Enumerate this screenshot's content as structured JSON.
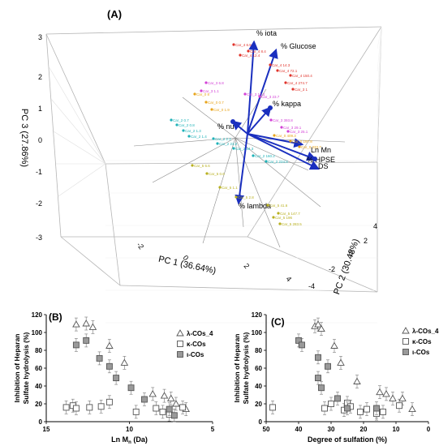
{
  "chart_data": [
    {
      "type": "scatter",
      "panel_label": "(A)",
      "xlabel": "PC 1 (36.64%)",
      "ylabel": "PC 2 (30.48%)",
      "zlabel": "PC 3 (27.86%)",
      "pc1_ticks": [
        "-2",
        "0",
        "2",
        "4"
      ],
      "pc2_ticks": [
        "-4",
        "-2",
        "0",
        "2",
        "4"
      ],
      "pc3_ticks": [
        "-3",
        "-2",
        "-1",
        "0",
        "1",
        "2",
        "3"
      ],
      "vectors": [
        {
          "name": "% iota",
          "color": "#1a2fbf"
        },
        {
          "name": "% Glucose",
          "color": "#1a2fbf"
        },
        {
          "name": "% kappa",
          "color": "#1a2fbf"
        },
        {
          "name": "% nu",
          "color": "#1a2fbf"
        },
        {
          "name": "Ln Mn",
          "color": "#1a2fbf"
        },
        {
          "name": "% HPSE",
          "color": "#1a2fbf"
        },
        {
          "name": "DS",
          "color": "#1a2fbf"
        },
        {
          "name": "% lambda",
          "color": "#1a2fbf"
        }
      ],
      "groups": [
        {
          "name": "red",
          "color": "#e0322a",
          "labels": [
            "Car_4 6.5",
            "Car_4 8.4",
            "Car_4 12.4",
            "Car_4 14.3",
            "Car_4 72.1",
            "Car_4 150.4",
            "Car_4 274.7",
            "Car_3 1"
          ]
        },
        {
          "name": "magenta",
          "color": "#d23fd6",
          "labels": [
            "Car_3 6.8",
            "Car_3 1.1",
            "Car_3 17.4",
            "Car_3 23.7",
            "Car_3 393.8",
            "Car_3 29.1",
            "Car_3 25.1"
          ]
        },
        {
          "name": "orange",
          "color": "#e8a319",
          "labels": [
            "Car_0 8",
            "Car_0 0.7",
            "Car_0 1.9",
            "Car_0 409.3",
            "Car_0 197.8",
            "Car_0 333.7"
          ]
        },
        {
          "name": "teal",
          "color": "#1fb2b8",
          "labels": [
            "Car_2 0.7",
            "Car_2 0.8",
            "Car_2 1.3",
            "Car_2 1.4",
            "Car_2 2.2",
            "Car_2 23.2",
            "Car_2 44.3",
            "Car_2 160.2",
            "Car_2 224.8"
          ]
        },
        {
          "name": "olive",
          "color": "#b8b01e",
          "labels": [
            "Car_5 6.6",
            "Car_5 0.6",
            "Car_5 1.1",
            "Car_5 2.8",
            "Car_5 41.6",
            "Car_5 147.7",
            "Car_5 196",
            "Car_5 283.5"
          ]
        }
      ]
    },
    {
      "type": "scatter",
      "panel_label": "(B)",
      "xlabel": "Ln M",
      "xlabel_sub": "n",
      "xlabel_unit": " (Da)",
      "ylabel": "Inhibition of Heparan Sulfate hydrolysis (%)",
      "ylabel_lines": [
        "Inhibition of Heparan",
        "Sulfate hydrolysis (%)"
      ],
      "xlim": [
        15,
        5
      ],
      "ylim": [
        0,
        120
      ],
      "xticks": [
        "15",
        "10",
        "5"
      ],
      "yticks": [
        "0",
        "20",
        "40",
        "60",
        "80",
        "100",
        "120"
      ],
      "series": [
        {
          "name": "λ-COs_4",
          "marker": "triangle",
          "points": [
            [
              13.2,
              109
            ],
            [
              12.6,
              110
            ],
            [
              12.2,
              106
            ],
            [
              11.2,
              85
            ],
            [
              10.3,
              66
            ],
            [
              8.6,
              31
            ],
            [
              7.9,
              29
            ],
            [
              7.5,
              26
            ],
            [
              7.2,
              20
            ],
            [
              6.6,
              14
            ]
          ]
        },
        {
          "name": "κ-COs",
          "marker": "square-open",
          "points": [
            [
              13.8,
              16
            ],
            [
              13.4,
              18
            ],
            [
              13.2,
              15
            ],
            [
              12.4,
              16
            ],
            [
              11.7,
              17
            ],
            [
              11.2,
              22
            ],
            [
              9.6,
              11
            ],
            [
              8.4,
              15
            ],
            [
              8.0,
              11
            ],
            [
              7.6,
              8
            ],
            [
              6.8,
              16
            ]
          ]
        },
        {
          "name": "ι-COs",
          "marker": "square-filled",
          "points": [
            [
              13.2,
              86
            ],
            [
              12.6,
              91
            ],
            [
              11.8,
              71
            ],
            [
              11.2,
              62
            ],
            [
              10.8,
              49
            ],
            [
              9.9,
              38
            ],
            [
              9.1,
              25
            ],
            [
              7.6,
              14
            ],
            [
              7.3,
              7
            ]
          ]
        }
      ]
    },
    {
      "type": "scatter",
      "panel_label": "(C)",
      "xlabel": "Degree of sulfation (%)",
      "ylabel": "Inhibition of Heparan Sulfate hydrolysis (%)",
      "ylabel_lines": [
        "Inhibition of Heparan",
        "Sulfate hydrolysis (%)"
      ],
      "xlim": [
        50,
        0
      ],
      "ylim": [
        0,
        120
      ],
      "xticks": [
        "50",
        "40",
        "30",
        "20",
        "10",
        "0"
      ],
      "yticks": [
        "0",
        "20",
        "40",
        "60",
        "80",
        "100",
        "120"
      ],
      "series": [
        {
          "name": "λ-COs_4",
          "marker": "triangle",
          "points": [
            [
              35,
              107
            ],
            [
              34,
              109
            ],
            [
              33,
              104
            ],
            [
              29,
              85
            ],
            [
              27,
              66
            ],
            [
              22,
              45
            ],
            [
              15,
              33
            ],
            [
              13,
              31
            ],
            [
              11,
              26
            ],
            [
              8,
              26
            ],
            [
              5,
              14
            ]
          ]
        },
        {
          "name": "κ-COs",
          "marker": "square-open",
          "points": [
            [
              48,
              16
            ],
            [
              32,
              15
            ],
            [
              30,
              20
            ],
            [
              26,
              13
            ],
            [
              25,
              21
            ],
            [
              24,
              17
            ],
            [
              21,
              11
            ],
            [
              19,
              14
            ],
            [
              16,
              11
            ],
            [
              16,
              9
            ],
            [
              14,
              11
            ],
            [
              9,
              18
            ]
          ]
        },
        {
          "name": "ι-COs",
          "marker": "square-filled",
          "points": [
            [
              40,
              91
            ],
            [
              39,
              86
            ],
            [
              34,
              72
            ],
            [
              31,
              62
            ],
            [
              34,
              49
            ],
            [
              33,
              38
            ],
            [
              28,
              26
            ],
            [
              25,
              15
            ],
            [
              16,
              15
            ]
          ]
        }
      ]
    }
  ]
}
